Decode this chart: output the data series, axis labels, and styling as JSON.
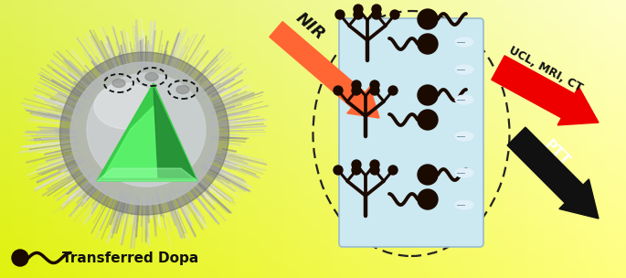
{
  "fig_width": 6.85,
  "fig_height": 3.04,
  "dpi": 100,
  "nir_label": "NIR",
  "ucl_label": "UCL, MRI, CT",
  "ptt_label": "PTT",
  "transferred_dopa_label": "Transferred Dopa",
  "arrow_nir_color": "#ff6633",
  "arrow_ucl_color": "#ee0000",
  "arrow_ptt_color": "#111111",
  "dark_color": "#1a0a00",
  "rectangle_color": "#cce8f0",
  "dashed_color": "#111111"
}
